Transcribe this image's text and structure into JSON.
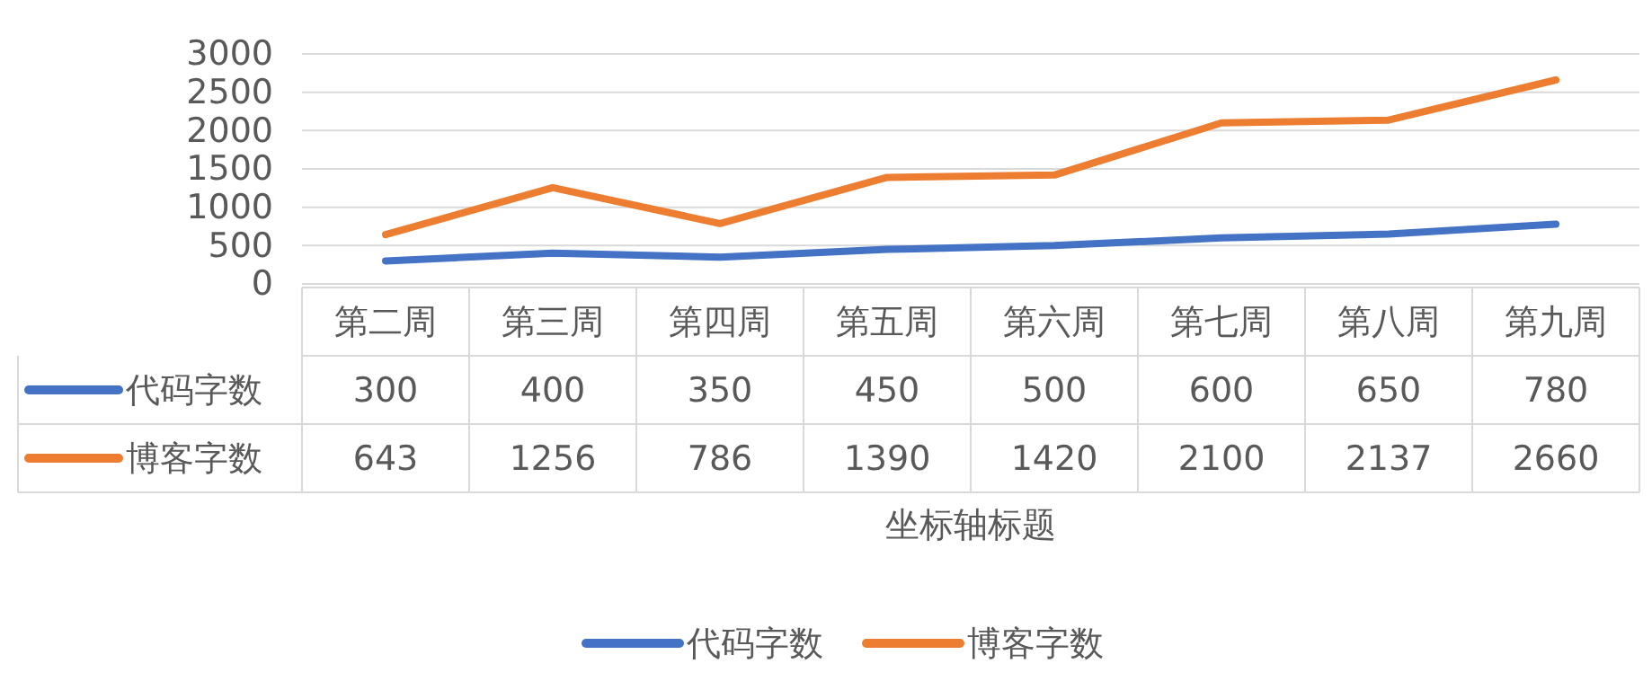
{
  "chart_data": {
    "type": "line",
    "xlabel": "坐标轴标题",
    "categories": [
      "第二周",
      "第三周",
      "第四周",
      "第五周",
      "第六周",
      "第七周",
      "第八周",
      "第九周"
    ],
    "series": [
      {
        "name": "代码字数",
        "color": "#4472c4",
        "values": [
          300,
          400,
          350,
          450,
          500,
          600,
          650,
          780
        ]
      },
      {
        "name": "博客字数",
        "color": "#ed7d31",
        "values": [
          643,
          1256,
          786,
          1390,
          1420,
          2100,
          2137,
          2660
        ]
      }
    ],
    "ylim": [
      0,
      3000
    ],
    "yticks": [
      0,
      500,
      1000,
      1500,
      2000,
      2500,
      3000
    ],
    "grid": "y",
    "legend": "bottom",
    "data_labels": true,
    "marker": "none",
    "line_style": "solid"
  }
}
